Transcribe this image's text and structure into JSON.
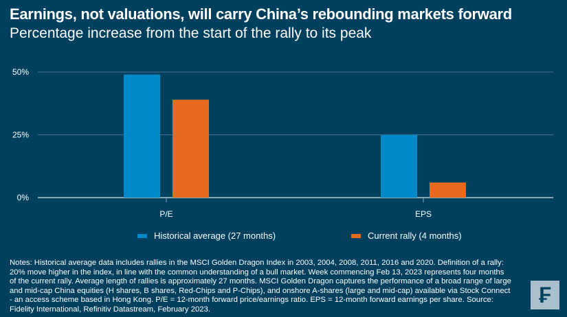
{
  "title": "Earnings, not valuations, will carry China’s rebounding markets forward",
  "subtitle": "Percentage increase from the start of the rally to its peak",
  "chart_data": {
    "type": "bar",
    "categories": [
      "P/E",
      "EPS"
    ],
    "series": [
      {
        "name": "Historical average (27 months)",
        "values": [
          49,
          25
        ],
        "color": "#0089c9"
      },
      {
        "name": "Current rally (4 months)",
        "values": [
          39,
          6
        ],
        "color": "#e86a1e"
      }
    ],
    "yticks": [
      "0%",
      "25%",
      "50%"
    ],
    "ylim": [
      0,
      50
    ],
    "grid": true,
    "legend": "bottom"
  },
  "notes": "Notes: Historical average data includes rallies in the MSCI Golden Dragon Index in 2003, 2004, 2008, 2011, 2016 and 2020. Definition of a rally: 20% move higher in the index, in line with the common understanding of a bull market. Week commencing Feb 13, 2023 represents four months of the current rally. Average length of rallies is approximately 27 months. MSCI Golden Dragon captures the performance of a broad range of large and mid-cap China equities (H shares, B shares, Red-Chips and P-Chips), and onshore A-shares (large and mid-cap) available via Stock Connect - an access scheme based in Hong Kong. P/E = 12-month forward price/earnings ratio. EPS = 12-month forward earnings per share. Source: Fidelity International, Refinitiv Datastream, February 2023.",
  "logo": "F"
}
